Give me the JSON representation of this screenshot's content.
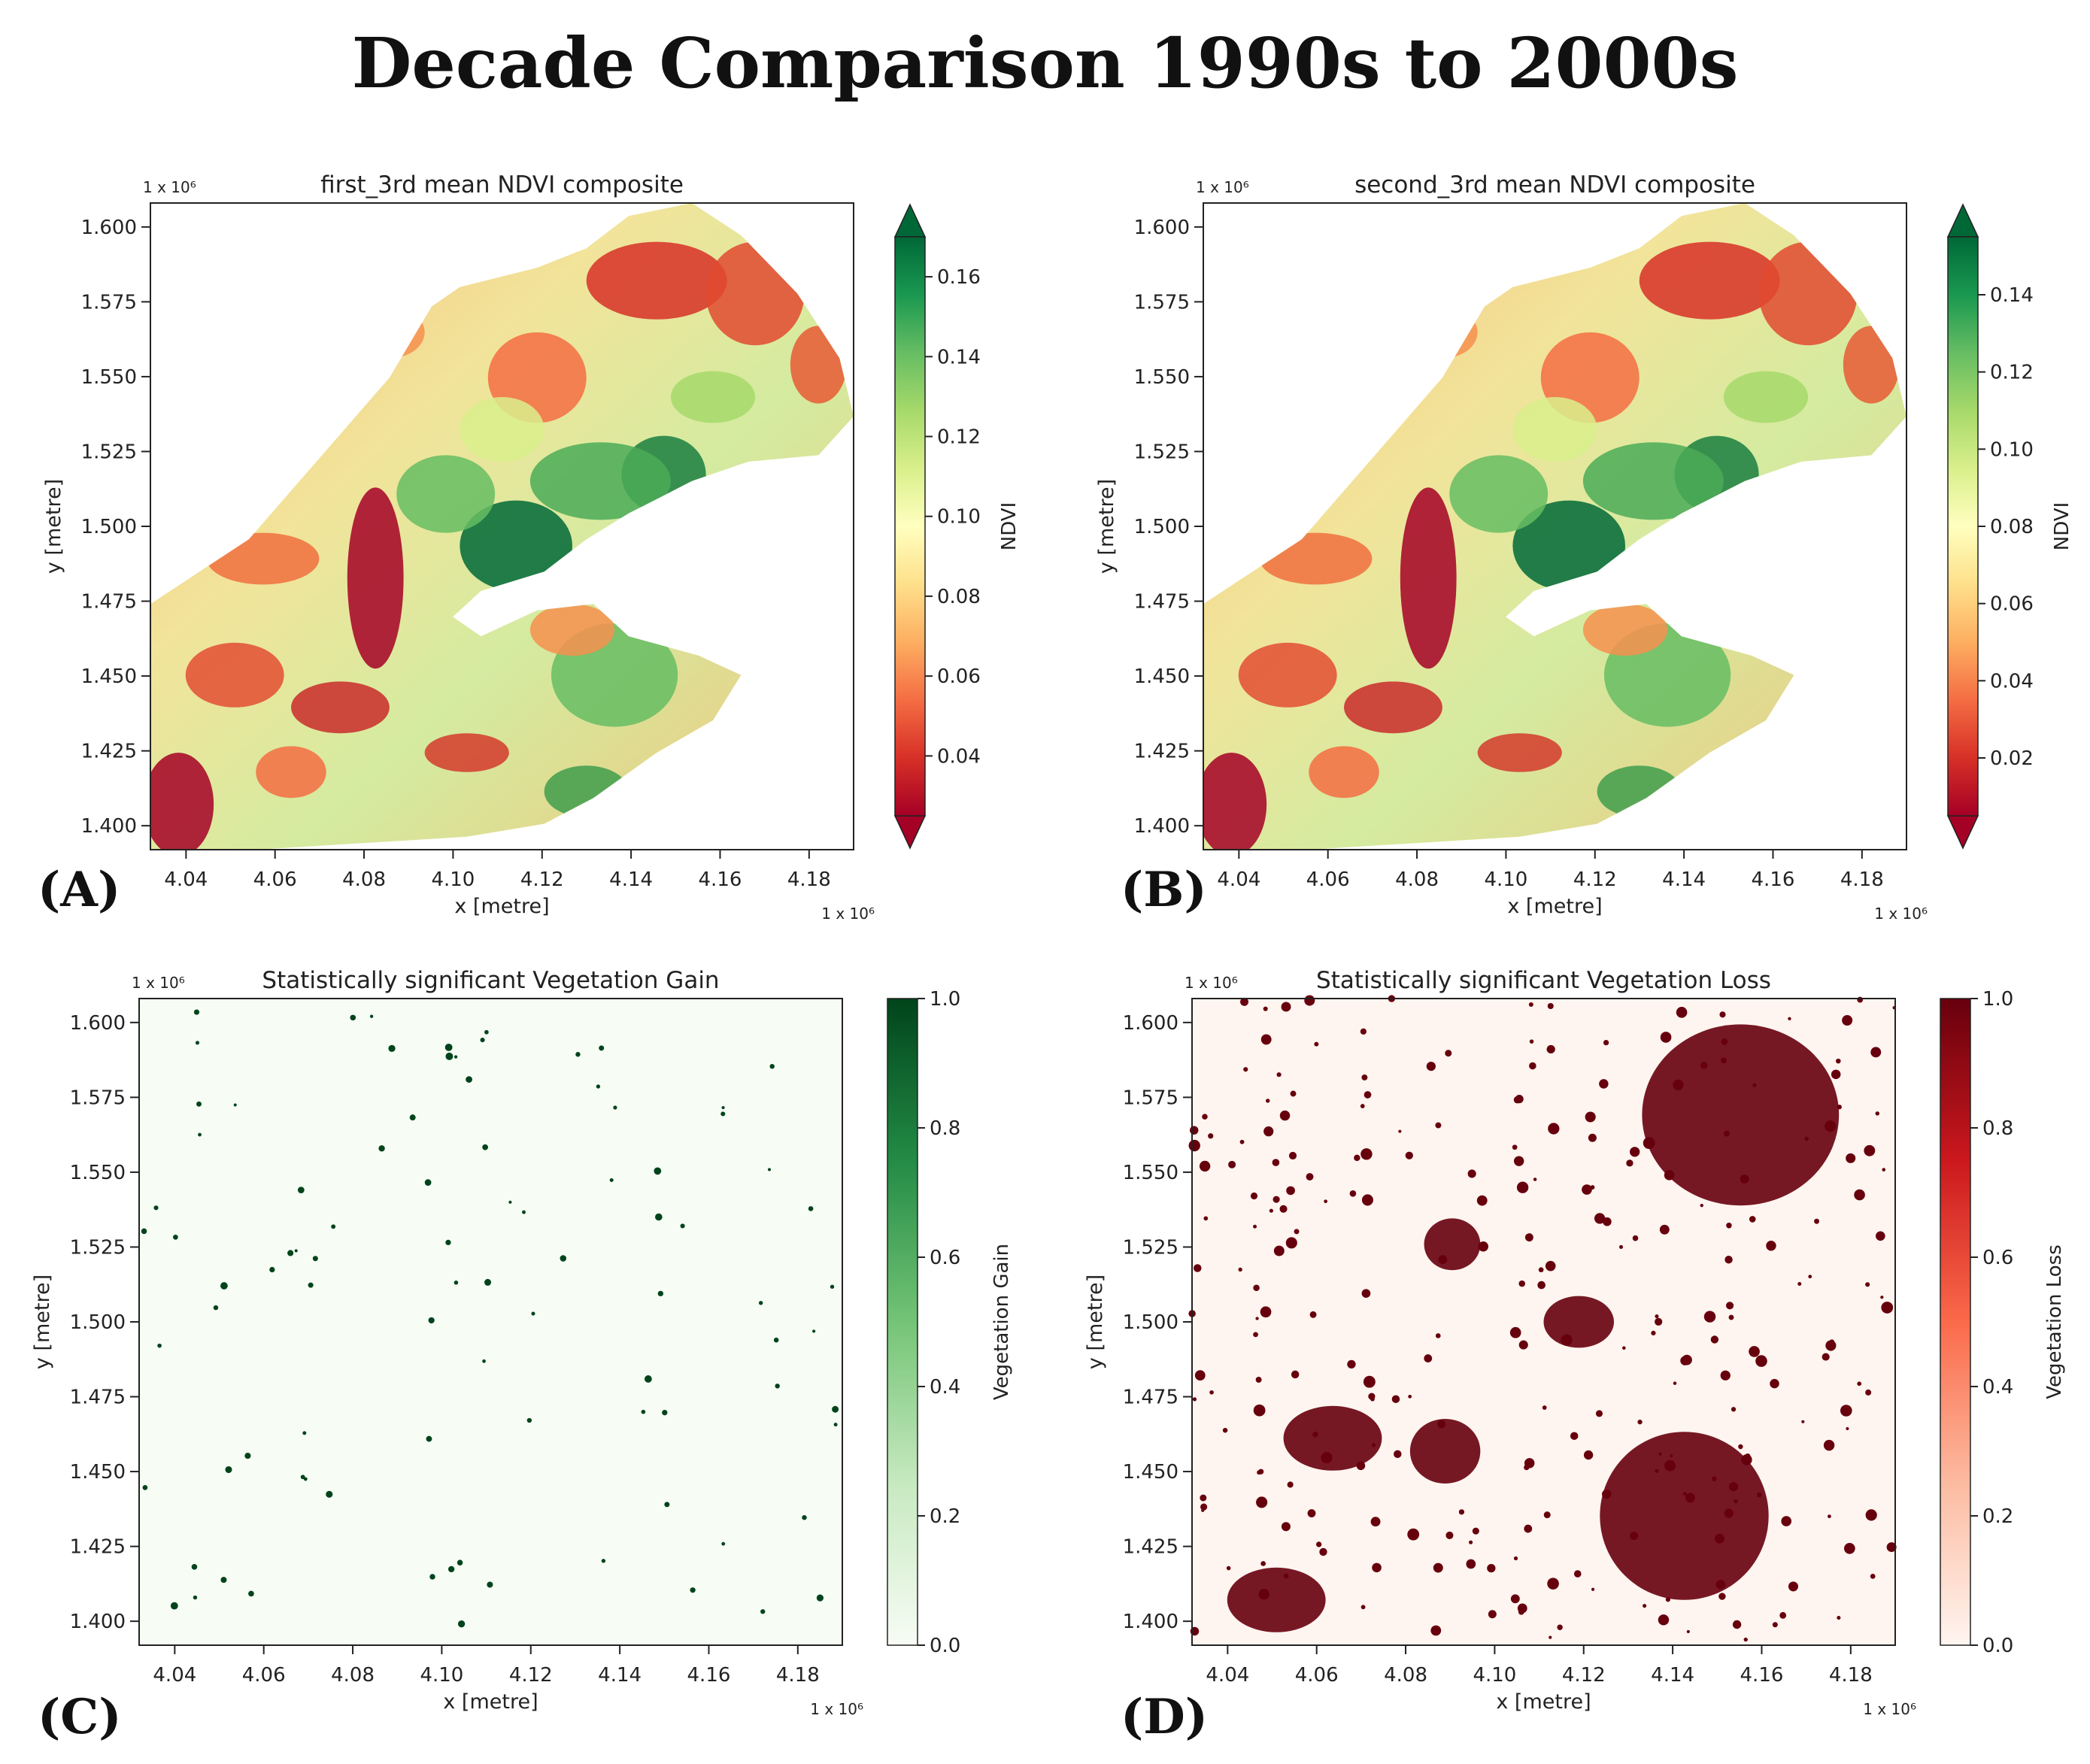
{
  "title": "Decade Comparison 1990s to 2000s",
  "colors": {
    "ndvi_low": "#a50026",
    "ndvi_mid": "#ffffbf",
    "ndvi_high": "#006837",
    "gain_low": "#f7fcf5",
    "gain_high": "#00441b",
    "loss_low": "#fff5f0",
    "loss_high": "#67000d"
  },
  "chart_data": [
    {
      "type": "heatmap",
      "panel_label": "(A)",
      "title": "first_3rd mean NDVI composite",
      "xlabel": "x [metre]",
      "ylabel": "y [metre]",
      "x_scale": "1 x 10⁶",
      "y_scale": "1 x 10⁶",
      "x_ticks": [
        "4.04",
        "4.06",
        "4.08",
        "4.10",
        "4.12",
        "4.14",
        "4.16",
        "4.18"
      ],
      "y_ticks": [
        "1.600",
        "1.575",
        "1.550",
        "1.525",
        "1.500",
        "1.475",
        "1.450",
        "1.425",
        "1.400"
      ],
      "xlim": [
        4.032,
        4.19
      ],
      "ylim": [
        1.392,
        1.608
      ],
      "colorbar": {
        "label": "NDVI",
        "ticks": [
          "0.16",
          "0.14",
          "0.12",
          "0.10",
          "0.08",
          "0.06",
          "0.04"
        ],
        "range": [
          0.025,
          0.17
        ],
        "extend": "both",
        "cmap": "RdYlGn"
      }
    },
    {
      "type": "heatmap",
      "panel_label": "(B)",
      "title": "second_3rd mean NDVI composite",
      "xlabel": "x [metre]",
      "ylabel": "y [metre]",
      "x_scale": "1 x 10⁶",
      "y_scale": "1 x 10⁶",
      "x_ticks": [
        "4.04",
        "4.06",
        "4.08",
        "4.10",
        "4.12",
        "4.14",
        "4.16",
        "4.18"
      ],
      "y_ticks": [
        "1.600",
        "1.575",
        "1.550",
        "1.525",
        "1.500",
        "1.475",
        "1.450",
        "1.425",
        "1.400"
      ],
      "xlim": [
        4.032,
        4.19
      ],
      "ylim": [
        1.392,
        1.608
      ],
      "colorbar": {
        "label": "NDVI",
        "ticks": [
          "0.14",
          "0.12",
          "0.10",
          "0.08",
          "0.06",
          "0.04",
          "0.02"
        ],
        "range": [
          0.005,
          0.155
        ],
        "extend": "both",
        "cmap": "RdYlGn"
      }
    },
    {
      "type": "heatmap",
      "panel_label": "(C)",
      "title": "Statistically significant Vegetation Gain",
      "xlabel": "x [metre]",
      "ylabel": "y [metre]",
      "x_scale": "1 x 10⁶",
      "y_scale": "1 x 10⁶",
      "x_ticks": [
        "4.04",
        "4.06",
        "4.08",
        "4.10",
        "4.12",
        "4.14",
        "4.16",
        "4.18"
      ],
      "y_ticks": [
        "1.600",
        "1.575",
        "1.550",
        "1.525",
        "1.500",
        "1.475",
        "1.450",
        "1.425",
        "1.400"
      ],
      "xlim": [
        4.032,
        4.19
      ],
      "ylim": [
        1.392,
        1.608
      ],
      "colorbar": {
        "label": "Vegetation Gain",
        "ticks": [
          "1.0",
          "0.8",
          "0.6",
          "0.4",
          "0.2",
          "0.0"
        ],
        "range": [
          0.0,
          1.0
        ],
        "extend": "neither",
        "cmap": "Greens"
      }
    },
    {
      "type": "heatmap",
      "panel_label": "(D)",
      "title": "Statistically significant Vegetation Loss",
      "xlabel": "x [metre]",
      "ylabel": "y [metre]",
      "x_scale": "1 x 10⁶",
      "y_scale": "1 x 10⁶",
      "x_ticks": [
        "4.04",
        "4.06",
        "4.08",
        "4.10",
        "4.12",
        "4.14",
        "4.16",
        "4.18"
      ],
      "y_ticks": [
        "1.600",
        "1.575",
        "1.550",
        "1.525",
        "1.500",
        "1.475",
        "1.450",
        "1.425",
        "1.400"
      ],
      "xlim": [
        4.032,
        4.19
      ],
      "ylim": [
        1.392,
        1.608
      ],
      "colorbar": {
        "label": "Vegetation Loss",
        "ticks": [
          "1.0",
          "0.8",
          "0.6",
          "0.4",
          "0.2",
          "0.0"
        ],
        "range": [
          0.0,
          1.0
        ],
        "extend": "neither",
        "cmap": "Reds"
      }
    }
  ]
}
